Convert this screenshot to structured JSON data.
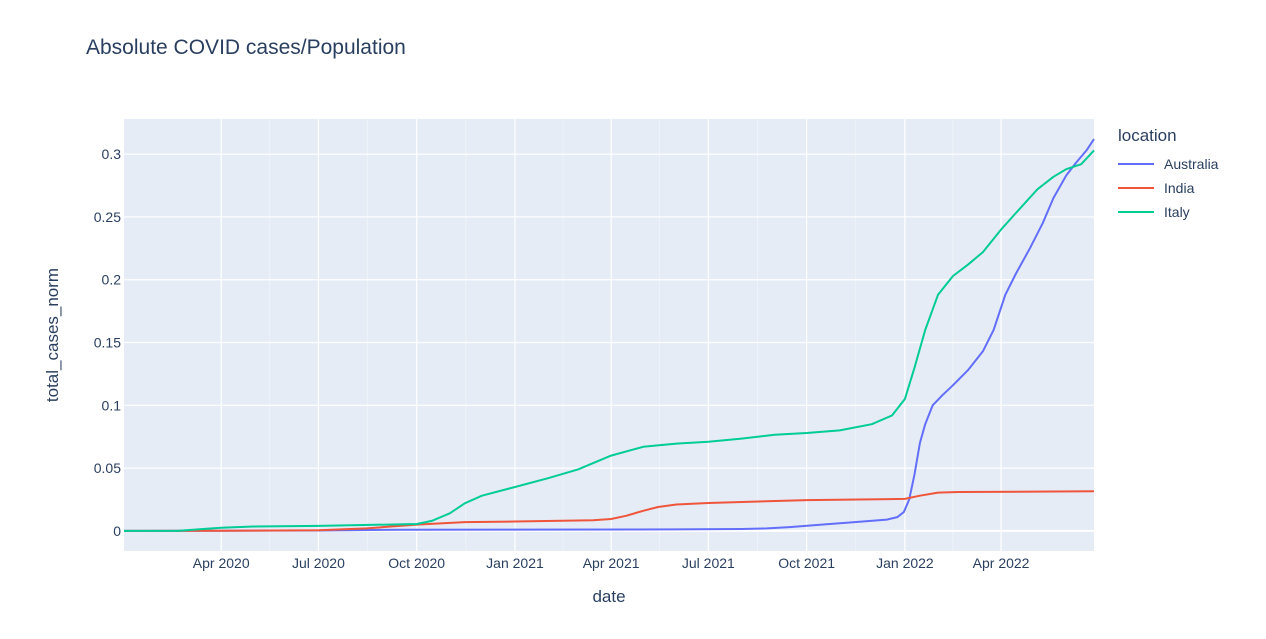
{
  "chart_data": {
    "type": "line",
    "title": "Absolute COVID cases/Population",
    "xlabel": "date",
    "ylabel": "total_cases_norm",
    "xlim": [
      "2020-01-01",
      "2022-06-27"
    ],
    "ylim": [
      -0.016,
      0.328
    ],
    "x_ticks": [
      {
        "date": "2020-04-01",
        "label": "Apr 2020"
      },
      {
        "date": "2020-07-01",
        "label": "Jul 2020"
      },
      {
        "date": "2020-10-01",
        "label": "Oct 2020"
      },
      {
        "date": "2021-01-01",
        "label": "Jan 2021"
      },
      {
        "date": "2021-04-01",
        "label": "Apr 2021"
      },
      {
        "date": "2021-07-01",
        "label": "Jul 2021"
      },
      {
        "date": "2021-10-01",
        "label": "Oct 2021"
      },
      {
        "date": "2022-01-01",
        "label": "Jan 2022"
      },
      {
        "date": "2022-04-01",
        "label": "Apr 2022"
      }
    ],
    "y_ticks": [
      {
        "value": 0,
        "label": "0"
      },
      {
        "value": 0.05,
        "label": "0.05"
      },
      {
        "value": 0.1,
        "label": "0.1"
      },
      {
        "value": 0.15,
        "label": "0.15"
      },
      {
        "value": 0.2,
        "label": "0.2"
      },
      {
        "value": 0.25,
        "label": "0.25"
      },
      {
        "value": 0.3,
        "label": "0.3"
      }
    ],
    "grid": true,
    "legend_title": "location",
    "legend_position": "right",
    "series": [
      {
        "name": "Australia",
        "color": "#636efa",
        "points": [
          [
            "2020-01-01",
            0
          ],
          [
            "2020-04-01",
            0.0002
          ],
          [
            "2020-07-01",
            0.0003
          ],
          [
            "2020-09-15",
            0.001
          ],
          [
            "2021-06-01",
            0.0012
          ],
          [
            "2021-08-01",
            0.0015
          ],
          [
            "2021-08-25",
            0.002
          ],
          [
            "2021-09-15",
            0.003
          ],
          [
            "2021-10-15",
            0.005
          ],
          [
            "2021-11-15",
            0.007
          ],
          [
            "2021-12-15",
            0.009
          ],
          [
            "2021-12-25",
            0.011
          ],
          [
            "2021-12-31",
            0.015
          ],
          [
            "2022-01-05",
            0.025
          ],
          [
            "2022-01-10",
            0.045
          ],
          [
            "2022-01-15",
            0.07
          ],
          [
            "2022-01-20",
            0.085
          ],
          [
            "2022-01-27",
            0.1
          ],
          [
            "2022-02-05",
            0.108
          ],
          [
            "2022-02-15",
            0.116
          ],
          [
            "2022-03-01",
            0.128
          ],
          [
            "2022-03-15",
            0.143
          ],
          [
            "2022-03-25",
            0.16
          ],
          [
            "2022-04-05",
            0.188
          ],
          [
            "2022-04-15",
            0.205
          ],
          [
            "2022-04-28",
            0.225
          ],
          [
            "2022-05-10",
            0.245
          ],
          [
            "2022-05-20",
            0.265
          ],
          [
            "2022-06-01",
            0.283
          ],
          [
            "2022-06-10",
            0.293
          ],
          [
            "2022-06-20",
            0.303
          ],
          [
            "2022-06-27",
            0.312
          ]
        ]
      },
      {
        "name": "India",
        "color": "#ef553b",
        "points": [
          [
            "2020-01-01",
            0
          ],
          [
            "2020-04-01",
            0.0001
          ],
          [
            "2020-07-01",
            0.0005
          ],
          [
            "2020-08-15",
            0.002
          ],
          [
            "2020-10-01",
            0.005
          ],
          [
            "2020-11-15",
            0.007
          ],
          [
            "2021-01-01",
            0.0075
          ],
          [
            "2021-03-15",
            0.0085
          ],
          [
            "2021-04-01",
            0.0095
          ],
          [
            "2021-04-15",
            0.012
          ],
          [
            "2021-05-01",
            0.016
          ],
          [
            "2021-05-15",
            0.019
          ],
          [
            "2021-06-01",
            0.021
          ],
          [
            "2021-07-01",
            0.0222
          ],
          [
            "2021-10-01",
            0.0245
          ],
          [
            "2022-01-01",
            0.0255
          ],
          [
            "2022-01-15",
            0.028
          ],
          [
            "2022-02-01",
            0.0305
          ],
          [
            "2022-02-20",
            0.031
          ],
          [
            "2022-06-27",
            0.0315
          ]
        ]
      },
      {
        "name": "Italy",
        "color": "#00cc96",
        "points": [
          [
            "2020-01-01",
            0
          ],
          [
            "2020-02-20",
            0
          ],
          [
            "2020-03-15",
            0.0015
          ],
          [
            "2020-04-01",
            0.0025
          ],
          [
            "2020-05-01",
            0.0035
          ],
          [
            "2020-07-01",
            0.004
          ],
          [
            "2020-10-01",
            0.0055
          ],
          [
            "2020-10-15",
            0.008
          ],
          [
            "2020-11-01",
            0.014
          ],
          [
            "2020-11-15",
            0.022
          ],
          [
            "2020-12-01",
            0.028
          ],
          [
            "2021-01-01",
            0.035
          ],
          [
            "2021-02-01",
            0.042
          ],
          [
            "2021-03-01",
            0.049
          ],
          [
            "2021-04-01",
            0.06
          ],
          [
            "2021-05-01",
            0.067
          ],
          [
            "2021-06-01",
            0.0695
          ],
          [
            "2021-07-01",
            0.071
          ],
          [
            "2021-08-01",
            0.0735
          ],
          [
            "2021-09-01",
            0.0765
          ],
          [
            "2021-10-01",
            0.078
          ],
          [
            "2021-11-01",
            0.08
          ],
          [
            "2021-12-01",
            0.085
          ],
          [
            "2021-12-20",
            0.092
          ],
          [
            "2022-01-01",
            0.105
          ],
          [
            "2022-01-10",
            0.13
          ],
          [
            "2022-01-20",
            0.16
          ],
          [
            "2022-02-01",
            0.188
          ],
          [
            "2022-02-15",
            0.203
          ],
          [
            "2022-03-01",
            0.212
          ],
          [
            "2022-03-15",
            0.222
          ],
          [
            "2022-04-01",
            0.24
          ],
          [
            "2022-04-20",
            0.258
          ],
          [
            "2022-05-05",
            0.272
          ],
          [
            "2022-05-20",
            0.282
          ],
          [
            "2022-06-01",
            0.288
          ],
          [
            "2022-06-15",
            0.292
          ],
          [
            "2022-06-27",
            0.303
          ]
        ]
      }
    ]
  }
}
